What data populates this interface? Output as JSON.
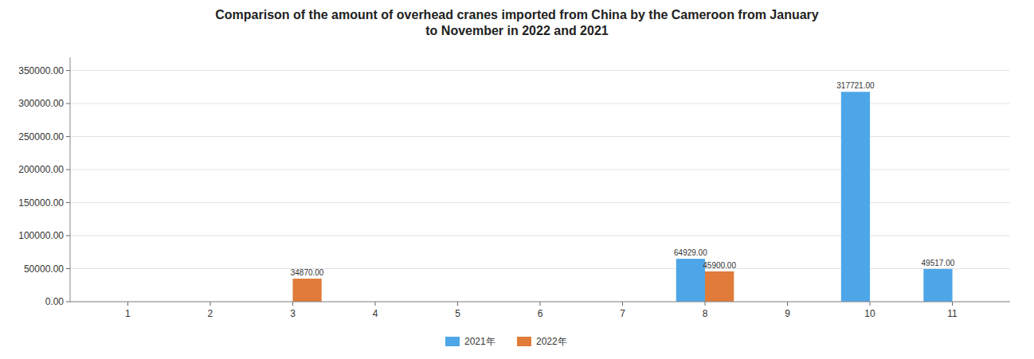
{
  "chart_data": {
    "type": "bar",
    "title": "Comparison of the amount of overhead cranes imported from China by the Cameroon from January\nto November in 2022 and 2021",
    "x": [
      1,
      2,
      3,
      4,
      5,
      6,
      7,
      8,
      9,
      10,
      11
    ],
    "xlim": [
      0.3,
      11.7
    ],
    "xticks": [
      1,
      2,
      3,
      4,
      5,
      6,
      7,
      8,
      9,
      10,
      11
    ],
    "series": [
      {
        "name": "2021年",
        "color": "#4da6e8",
        "values": [
          0,
          0,
          0,
          0,
          0,
          0,
          0,
          64929,
          0,
          317721,
          49517
        ],
        "value_labels": [
          null,
          null,
          null,
          null,
          null,
          null,
          null,
          "64929.00",
          null,
          "317721.00",
          "49517.00"
        ]
      },
      {
        "name": "2022年",
        "color": "#e07b39",
        "values": [
          0,
          0,
          34870,
          0,
          0,
          0,
          0,
          45900,
          0,
          0,
          0
        ],
        "value_labels": [
          null,
          null,
          "34870.00",
          null,
          null,
          null,
          null,
          "45900.00",
          null,
          null,
          null
        ]
      }
    ],
    "ylim": [
      0,
      370000
    ],
    "yticks": [
      {
        "value": 0,
        "label": "0.00"
      },
      {
        "value": 50000,
        "label": "50000.00"
      },
      {
        "value": 100000,
        "label": "100000.00"
      },
      {
        "value": 150000,
        "label": "150000.00"
      },
      {
        "value": 200000,
        "label": "200000.00"
      },
      {
        "value": 250000,
        "label": "250000.00"
      },
      {
        "value": 300000,
        "label": "300000.00"
      },
      {
        "value": 350000,
        "label": "350000.00"
      }
    ],
    "grid": true,
    "data_labels": true,
    "legend": "bottom"
  }
}
